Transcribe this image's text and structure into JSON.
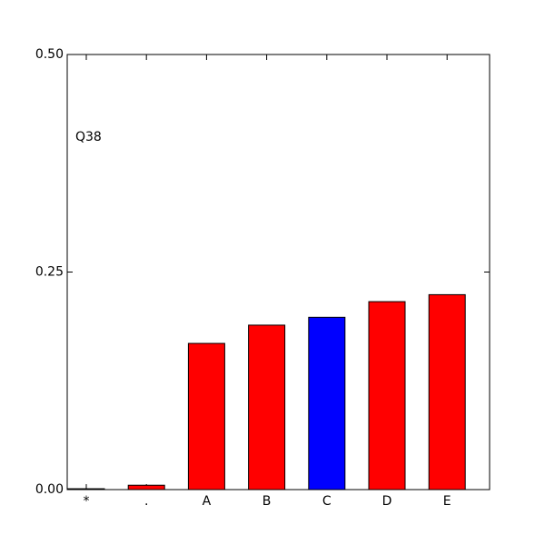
{
  "chart_data": {
    "type": "bar",
    "annotation": "Q38",
    "categories": [
      "*",
      ".",
      "A",
      "B",
      "C",
      "D",
      "E"
    ],
    "values": [
      0.001,
      0.005,
      0.168,
      0.189,
      0.198,
      0.216,
      0.224
    ],
    "colors": [
      "#ff0000",
      "#ff0000",
      "#ff0000",
      "#ff0000",
      "#0000ff",
      "#ff0000",
      "#ff0000"
    ],
    "ylim": [
      0,
      0.5
    ],
    "yticks": [
      {
        "value": 0,
        "label": "0.00"
      },
      0.25,
      {
        "value": 0.5,
        "label": "0.50"
      }
    ],
    "grid": false
  }
}
